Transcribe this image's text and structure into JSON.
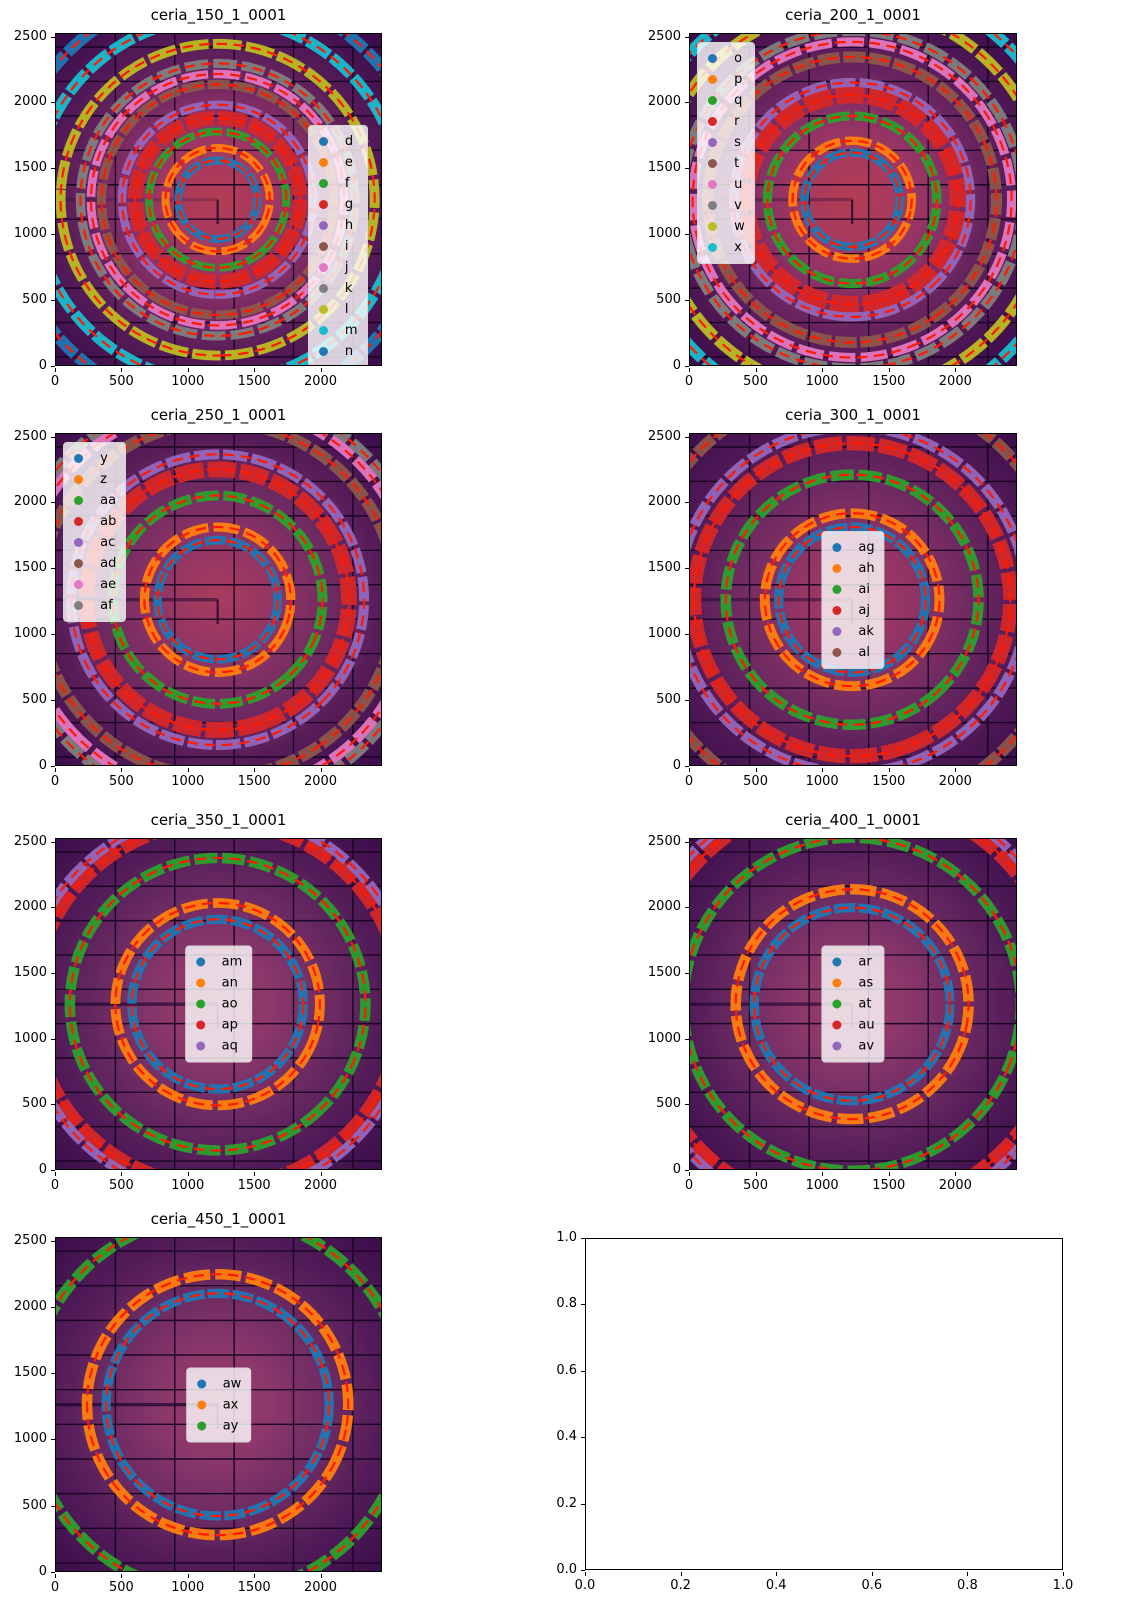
{
  "colors": {
    "calibration_dash": "#ff1a00",
    "axes": "#000000",
    "detector_gap": "#150320",
    "beam_streak": "#1a0430"
  },
  "colormap": {
    "hot": [
      [
        0,
        "#b23c53"
      ],
      [
        0.18,
        "#a83a5e"
      ],
      [
        0.38,
        "#8c3166"
      ],
      [
        0.55,
        "#6b2560"
      ],
      [
        0.72,
        "#531a57"
      ],
      [
        0.9,
        "#42104e"
      ],
      [
        1,
        "#3a0c49"
      ]
    ],
    "mid": [
      [
        0,
        "#a83c5c"
      ],
      [
        0.25,
        "#923565"
      ],
      [
        0.5,
        "#6f2a62"
      ],
      [
        0.75,
        "#521a57"
      ],
      [
        1,
        "#3c0e4b"
      ]
    ],
    "mild": [
      [
        0,
        "#9c3e68"
      ],
      [
        0.25,
        "#8a376a"
      ],
      [
        0.5,
        "#6b2a62"
      ],
      [
        0.72,
        "#511b58"
      ],
      [
        1,
        "#3c0e4b"
      ]
    ]
  },
  "detector_grid": {
    "vlines": [
      450,
      900,
      1350,
      1800,
      2250
    ],
    "hlines": [
      99,
      362,
      625,
      888,
      1151,
      1414,
      1677,
      1940,
      2203,
      2466
    ]
  },
  "chart_data": [
    {
      "type": "heatmap",
      "title": "ceria_150_1_0001",
      "xlabel": "",
      "ylabel": "",
      "xlim": [
        0,
        2463
      ],
      "ylim": [
        0,
        2527
      ],
      "x_ticks": [
        "0",
        "500",
        "1000",
        "1500",
        "2000"
      ],
      "y_ticks": [
        "0",
        "500",
        "1000",
        "1500",
        "2000",
        "2500"
      ],
      "beam_center": [
        1225,
        1262
      ],
      "background": "hot",
      "streak_opacity": 0.2,
      "legend": {
        "x": 0.775,
        "y": 0.275,
        "anchor": "top-left"
      },
      "rings": [
        {
          "label": "d",
          "color": "#1f77b4",
          "radius": 300,
          "width": 60
        },
        {
          "label": "e",
          "color": "#ff7f0e",
          "radius": 395,
          "width": 60
        },
        {
          "label": "f",
          "color": "#2ca02c",
          "radius": 520,
          "width": 60
        },
        {
          "label": "g",
          "color": "#d62728",
          "radius": 625,
          "width": 110
        },
        {
          "label": "h",
          "color": "#9467bd",
          "radius": 725,
          "width": 65
        },
        {
          "label": "i",
          "color": "#8c564b",
          "radius": 880,
          "width": 70
        },
        {
          "label": "j",
          "color": "#e377c2",
          "radius": 960,
          "width": 65
        },
        {
          "label": "k",
          "color": "#7f7f7f",
          "radius": 1040,
          "width": 70
        },
        {
          "label": "l",
          "color": "#bcbd22",
          "radius": 1190,
          "width": 75
        },
        {
          "label": "m",
          "color": "#17becf",
          "radius": 1390,
          "width": 85
        },
        {
          "label": "n",
          "color": "#1f77b4",
          "radius": 1600,
          "width": 90
        }
      ]
    },
    {
      "type": "heatmap",
      "title": "ceria_200_1_0001",
      "xlabel": "",
      "ylabel": "",
      "xlim": [
        0,
        2463
      ],
      "ylim": [
        0,
        2527
      ],
      "x_ticks": [
        "0",
        "500",
        "1000",
        "1500",
        "2000"
      ],
      "y_ticks": [
        "0",
        "500",
        "1000",
        "1500",
        "2000",
        "2500"
      ],
      "beam_center": [
        1225,
        1262
      ],
      "background": "hot",
      "streak_opacity": 0.3,
      "legend": {
        "x": 0.022,
        "y": 0.025,
        "anchor": "top-left"
      },
      "rings": [
        {
          "label": "o",
          "color": "#1f77b4",
          "radius": 360,
          "width": 65
        },
        {
          "label": "p",
          "color": "#ff7f0e",
          "radius": 450,
          "width": 65
        },
        {
          "label": "q",
          "color": "#2ca02c",
          "radius": 640,
          "width": 70
        },
        {
          "label": "r",
          "color": "#d62728",
          "radius": 800,
          "width": 130
        },
        {
          "label": "s",
          "color": "#9467bd",
          "radius": 895,
          "width": 70
        },
        {
          "label": "t",
          "color": "#8c564b",
          "radius": 1090,
          "width": 85
        },
        {
          "label": "u",
          "color": "#e377c2",
          "radius": 1205,
          "width": 70
        },
        {
          "label": "v",
          "color": "#7f7f7f",
          "radius": 1290,
          "width": 80
        },
        {
          "label": "w",
          "color": "#bcbd22",
          "radius": 1475,
          "width": 85
        },
        {
          "label": "x",
          "color": "#17becf",
          "radius": 1660,
          "width": 90
        }
      ]
    },
    {
      "type": "heatmap",
      "title": "ceria_250_1_0001",
      "xlabel": "",
      "ylabel": "",
      "xlim": [
        0,
        2463
      ],
      "ylim": [
        0,
        2527
      ],
      "x_ticks": [
        "0",
        "500",
        "1000",
        "1500",
        "2000"
      ],
      "y_ticks": [
        "0",
        "500",
        "1000",
        "1500",
        "2000",
        "2500"
      ],
      "beam_center": [
        1225,
        1262
      ],
      "background": "mid",
      "streak_opacity": 0.5,
      "legend": {
        "x": 0.022,
        "y": 0.025,
        "anchor": "top-left"
      },
      "rings": [
        {
          "label": "y",
          "color": "#1f77b4",
          "radius": 455,
          "width": 65
        },
        {
          "label": "z",
          "color": "#ff7f0e",
          "radius": 555,
          "width": 70
        },
        {
          "label": "aa",
          "color": "#2ca02c",
          "radius": 795,
          "width": 75
        },
        {
          "label": "ab",
          "color": "#d62728",
          "radius": 995,
          "width": 120
        },
        {
          "label": "ac",
          "color": "#9467bd",
          "radius": 1110,
          "width": 75
        },
        {
          "label": "ad",
          "color": "#8c564b",
          "radius": 1355,
          "width": 90
        },
        {
          "label": "ae",
          "color": "#e377c2",
          "radius": 1495,
          "width": 80
        },
        {
          "label": "af",
          "color": "#7f7f7f",
          "radius": 1575,
          "width": 80
        }
      ]
    },
    {
      "type": "heatmap",
      "title": "ceria_300_1_0001",
      "xlabel": "",
      "ylabel": "",
      "xlim": [
        0,
        2463
      ],
      "ylim": [
        0,
        2527
      ],
      "x_ticks": [
        "0",
        "500",
        "1000",
        "1500",
        "2000"
      ],
      "y_ticks": [
        "0",
        "500",
        "1000",
        "1500",
        "2000",
        "2500"
      ],
      "beam_center": [
        1225,
        1262
      ],
      "background": "mid",
      "streak_opacity": 0.45,
      "legend": {
        "x": 0.5,
        "y": 0.5,
        "anchor": "center"
      },
      "rings": [
        {
          "label": "ag",
          "color": "#1f77b4",
          "radius": 555,
          "width": 70
        },
        {
          "label": "ah",
          "color": "#ff7f0e",
          "radius": 660,
          "width": 75
        },
        {
          "label": "ai",
          "color": "#2ca02c",
          "radius": 955,
          "width": 80
        },
        {
          "label": "aj",
          "color": "#d62728",
          "radius": 1195,
          "width": 110
        },
        {
          "label": "ak",
          "color": "#9467bd",
          "radius": 1320,
          "width": 80
        },
        {
          "label": "al",
          "color": "#8c564b",
          "radius": 1620,
          "width": 90
        }
      ]
    },
    {
      "type": "heatmap",
      "title": "ceria_350_1_0001",
      "xlabel": "",
      "ylabel": "",
      "xlim": [
        0,
        2463
      ],
      "ylim": [
        0,
        2527
      ],
      "x_ticks": [
        "0",
        "500",
        "1000",
        "1500",
        "2000"
      ],
      "y_ticks": [
        "0",
        "500",
        "1000",
        "1500",
        "2000",
        "2500"
      ],
      "beam_center": [
        1225,
        1262
      ],
      "background": "mild",
      "streak_opacity": 0.65,
      "legend": {
        "x": 0.5,
        "y": 0.5,
        "anchor": "center"
      },
      "rings": [
        {
          "label": "am",
          "color": "#1f77b4",
          "radius": 650,
          "width": 70
        },
        {
          "label": "an",
          "color": "#ff7f0e",
          "radius": 775,
          "width": 75
        },
        {
          "label": "ao",
          "color": "#2ca02c",
          "radius": 1120,
          "width": 80
        },
        {
          "label": "ap",
          "color": "#d62728",
          "radius": 1400,
          "width": 110
        },
        {
          "label": "aq",
          "color": "#9467bd",
          "radius": 1472,
          "width": 75
        }
      ]
    },
    {
      "type": "heatmap",
      "title": "ceria_400_1_0001",
      "xlabel": "",
      "ylabel": "",
      "xlim": [
        0,
        2463
      ],
      "ylim": [
        0,
        2527
      ],
      "x_ticks": [
        "0",
        "500",
        "1000",
        "1500",
        "2000"
      ],
      "y_ticks": [
        "0",
        "500",
        "1000",
        "1500",
        "2000",
        "2500"
      ],
      "beam_center": [
        1225,
        1262
      ],
      "background": "mild",
      "streak_opacity": 0.6,
      "legend": {
        "x": 0.5,
        "y": 0.5,
        "anchor": "center"
      },
      "rings": [
        {
          "label": "ar",
          "color": "#1f77b4",
          "radius": 740,
          "width": 70
        },
        {
          "label": "as",
          "color": "#ff7f0e",
          "radius": 880,
          "width": 80
        },
        {
          "label": "at",
          "color": "#2ca02c",
          "radius": 1275,
          "width": 80
        },
        {
          "label": "au",
          "color": "#d62728",
          "radius": 1600,
          "width": 110
        },
        {
          "label": "av",
          "color": "#9467bd",
          "radius": 1675,
          "width": 75
        }
      ]
    },
    {
      "type": "heatmap",
      "title": "ceria_450_1_0001",
      "xlabel": "",
      "ylabel": "",
      "xlim": [
        0,
        2463
      ],
      "ylim": [
        0,
        2527
      ],
      "x_ticks": [
        "0",
        "500",
        "1000",
        "1500",
        "2000"
      ],
      "y_ticks": [
        "0",
        "500",
        "1000",
        "1500",
        "2000",
        "2500"
      ],
      "beam_center": [
        1225,
        1262
      ],
      "background": "mild",
      "streak_opacity": 0.7,
      "legend": {
        "x": 0.5,
        "y": 0.5,
        "anchor": "center"
      },
      "rings": [
        {
          "label": "aw",
          "color": "#1f77b4",
          "radius": 845,
          "width": 70
        },
        {
          "label": "ax",
          "color": "#ff7f0e",
          "radius": 990,
          "width": 80
        },
        {
          "label": "ay",
          "color": "#2ca02c",
          "radius": 1440,
          "width": 85
        }
      ]
    },
    {
      "type": "empty",
      "title": "",
      "xlabel": "",
      "ylabel": "",
      "xlim": [
        0,
        1
      ],
      "ylim": [
        0,
        1
      ],
      "x_ticks": [
        "0.0",
        "0.2",
        "0.4",
        "0.6",
        "0.8",
        "1.0"
      ],
      "y_ticks": [
        "0.0",
        "0.2",
        "0.4",
        "0.6",
        "0.8",
        "1.0"
      ]
    }
  ]
}
